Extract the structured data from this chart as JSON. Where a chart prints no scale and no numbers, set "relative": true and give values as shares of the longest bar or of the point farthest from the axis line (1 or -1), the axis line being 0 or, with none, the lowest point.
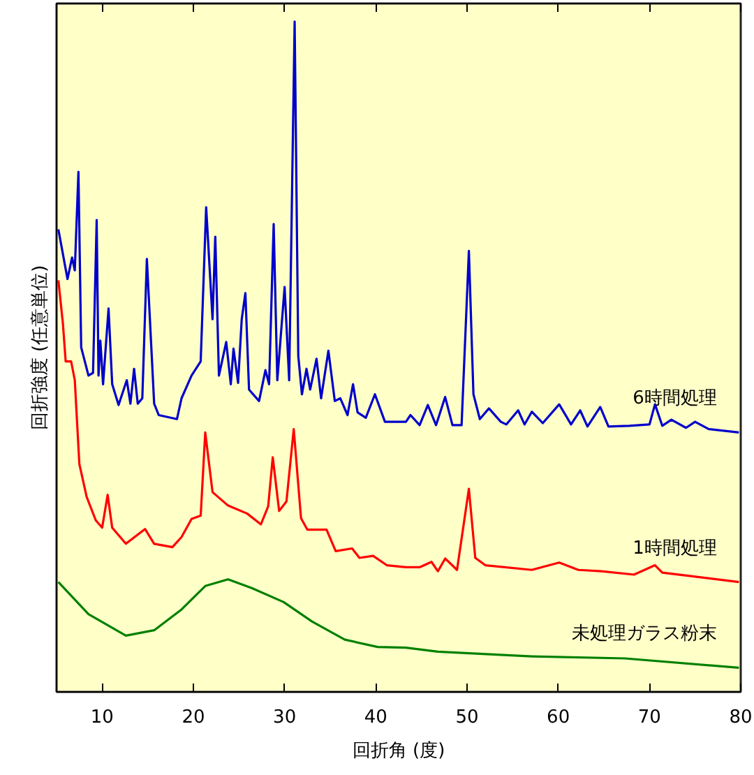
{
  "chart_data": {
    "type": "line",
    "xlabel": "回折角 (度)",
    "ylabel": "回折強度 (任意単位)",
    "relative": true,
    "xlim": [
      5,
      80
    ],
    "xticks": [
      10,
      20,
      30,
      40,
      50,
      60,
      70,
      80
    ],
    "grid": false,
    "marker": "none",
    "line_style": "solid",
    "tick_labels": "x",
    "series": [
      {
        "name": "6時間処理",
        "color": "#0000cc",
        "x": [
          5.2,
          6.2,
          6.7,
          7.0,
          7.4,
          7.7,
          8.5,
          9.0,
          9.4,
          9.6,
          9.8,
          10.1,
          10.7,
          11.1,
          11.8,
          12.7,
          13.1,
          13.5,
          13.9,
          14.4,
          14.9,
          15.7,
          16.2,
          18.2,
          18.7,
          19.8,
          20.8,
          21.4,
          22.1,
          22.4,
          22.8,
          23.6,
          24.1,
          24.4,
          24.9,
          25.3,
          25.7,
          26.1,
          27.2,
          27.9,
          28.3,
          28.8,
          29.2,
          30.0,
          30.5,
          31.1,
          31.5,
          31.9,
          32.4,
          32.8,
          33.5,
          34.0,
          34.8,
          35.5,
          36.1,
          36.9,
          37.5,
          38.0,
          38.9,
          39.9,
          41.0,
          43.3,
          43.8,
          44.8,
          45.7,
          46.6,
          47.6,
          48.4,
          49.4,
          50.2,
          50.7,
          51.4,
          52.4,
          53.7,
          54.3,
          55.6,
          56.3,
          57.1,
          58.3,
          60.1,
          61.4,
          62.4,
          63.2,
          64.6,
          65.5,
          67.8,
          70.0,
          70.6,
          71.4,
          72.4,
          74.0,
          75.0,
          76.5,
          79.8
        ],
        "values": [
          0.69,
          0.616,
          0.648,
          0.629,
          0.776,
          0.514,
          0.472,
          0.476,
          0.704,
          0.472,
          0.524,
          0.459,
          0.572,
          0.459,
          0.428,
          0.465,
          0.43,
          0.482,
          0.43,
          0.438,
          0.646,
          0.43,
          0.413,
          0.407,
          0.438,
          0.472,
          0.493,
          0.723,
          0.556,
          0.679,
          0.472,
          0.522,
          0.459,
          0.512,
          0.461,
          0.556,
          0.595,
          0.451,
          0.434,
          0.48,
          0.459,
          0.698,
          0.465,
          0.604,
          0.465,
          1.0,
          0.501,
          0.444,
          0.482,
          0.451,
          0.497,
          0.438,
          0.509,
          0.434,
          0.438,
          0.413,
          0.459,
          0.417,
          0.409,
          0.444,
          0.403,
          0.403,
          0.413,
          0.398,
          0.428,
          0.398,
          0.44,
          0.398,
          0.398,
          0.658,
          0.444,
          0.407,
          0.423,
          0.403,
          0.399,
          0.42,
          0.399,
          0.418,
          0.401,
          0.429,
          0.399,
          0.42,
          0.396,
          0.425,
          0.396,
          0.397,
          0.399,
          0.429,
          0.397,
          0.406,
          0.394,
          0.403,
          0.392,
          0.387
        ]
      },
      {
        "name": "1時間処理",
        "color": "#ff0000",
        "x": [
          5.2,
          5.7,
          6.0,
          6.6,
          7.0,
          7.5,
          8.3,
          9.3,
          10.0,
          10.6,
          11.1,
          12.6,
          14.7,
          15.7,
          17.7,
          18.7,
          19.8,
          20.8,
          21.3,
          22.1,
          23.8,
          25.9,
          27.4,
          28.2,
          28.7,
          29.4,
          30.2,
          31.0,
          31.8,
          32.5,
          33.6,
          34.6,
          35.6,
          37.4,
          38.2,
          39.7,
          41.2,
          43.3,
          44.8,
          46.1,
          46.8,
          47.6,
          48.9,
          50.2,
          50.9,
          52.0,
          57.1,
          60.1,
          62.2,
          64.7,
          68.3,
          70.6,
          71.4,
          75.0,
          79.8
        ],
        "values": [
          0.614,
          0.549,
          0.493,
          0.493,
          0.465,
          0.34,
          0.291,
          0.256,
          0.245,
          0.294,
          0.245,
          0.221,
          0.243,
          0.221,
          0.216,
          0.231,
          0.258,
          0.263,
          0.387,
          0.298,
          0.278,
          0.266,
          0.25,
          0.277,
          0.35,
          0.27,
          0.284,
          0.392,
          0.259,
          0.242,
          0.242,
          0.242,
          0.21,
          0.214,
          0.2,
          0.203,
          0.189,
          0.186,
          0.186,
          0.194,
          0.18,
          0.199,
          0.182,
          0.303,
          0.2,
          0.189,
          0.182,
          0.193,
          0.182,
          0.18,
          0.175,
          0.189,
          0.178,
          0.172,
          0.164
        ]
      },
      {
        "name": "未処理ガラス粉末",
        "color": "#008000",
        "x": [
          5.2,
          8.5,
          12.6,
          15.7,
          18.7,
          21.3,
          23.8,
          26.4,
          29.9,
          33.0,
          36.6,
          40.2,
          43.3,
          46.8,
          57.1,
          67.3,
          79.8
        ],
        "values": [
          0.164,
          0.116,
          0.084,
          0.092,
          0.123,
          0.158,
          0.168,
          0.155,
          0.134,
          0.105,
          0.078,
          0.067,
          0.066,
          0.06,
          0.053,
          0.05,
          0.036
        ]
      }
    ]
  }
}
